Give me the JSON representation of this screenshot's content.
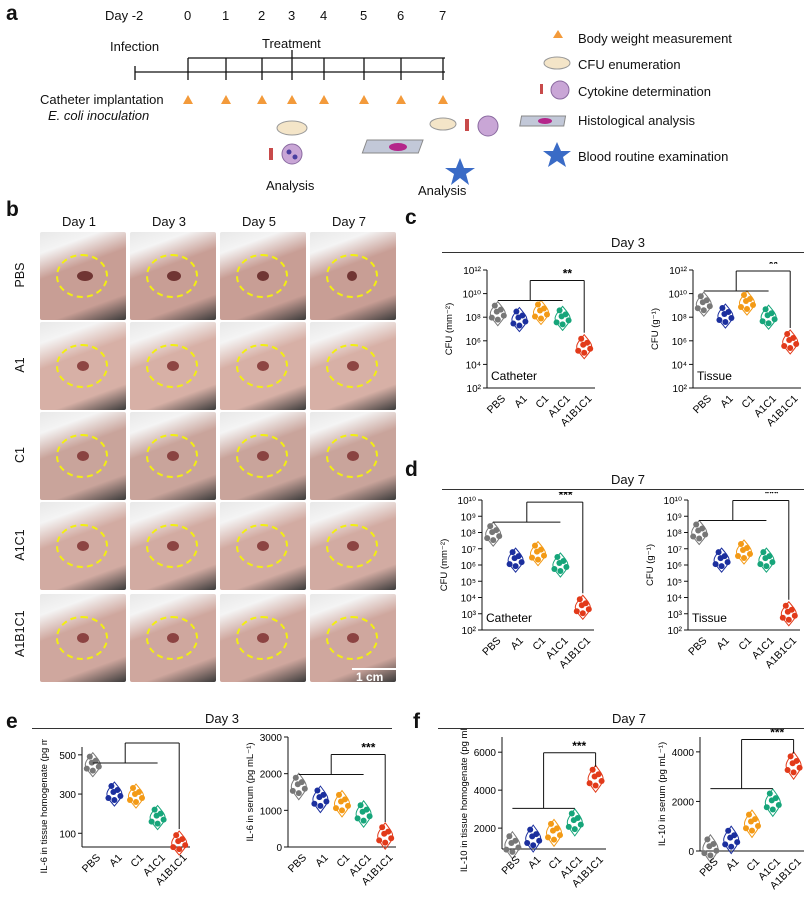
{
  "panel_a": {
    "label": "a",
    "day_prefix": "Day -2",
    "days": [
      "0",
      "1",
      "2",
      "3",
      "4",
      "5",
      "6",
      "7"
    ],
    "infection": "Infection",
    "treatment": "Treatment",
    "catheter": "Catheter implantation",
    "inoculation": "E. coli inoculation",
    "analysis": "Analysis",
    "legend": [
      "Body weight measurement",
      "CFU enumeration",
      "Cytokine determination",
      "Histological analysis",
      "Blood routine examination"
    ]
  },
  "panel_b": {
    "label": "b",
    "days": [
      "Day 1",
      "Day 3",
      "Day 5",
      "Day 7"
    ],
    "groups": [
      "PBS",
      "A1",
      "C1",
      "A1C1",
      "A1B1C1"
    ],
    "scale": "1 cm",
    "tones": [
      "#c89e95",
      "#d7b0a6",
      "#c9a49b",
      "#d2aba2",
      "#cfa79e"
    ]
  },
  "panel_c": {
    "label": "c",
    "title": "Day 3"
  },
  "panel_d": {
    "label": "d",
    "title": "Day 7"
  },
  "panel_e": {
    "label": "e",
    "title": "Day 3"
  },
  "panel_f": {
    "label": "f",
    "title": "Day 7"
  },
  "colors": {
    "PBS": "#777777",
    "A1": "#1b2f9e",
    "C1": "#f39a16",
    "A1C1": "#16a57a",
    "A1B1C1": "#e23a1a",
    "marker": "#f39a3a",
    "star": "#3a6bc6"
  },
  "chart_data": [
    {
      "id": "c1",
      "type": "scatter",
      "ylabel": "CFU (mm⁻²)",
      "inner_label": "Catheter",
      "log": true,
      "yticks": [
        "10²",
        "10⁴",
        "10⁶",
        "10⁸",
        "10¹⁰",
        "10¹²"
      ],
      "ylim": [
        2,
        12
      ],
      "categories": [
        "PBS",
        "A1",
        "C1",
        "A1C1",
        "A1B1C1"
      ],
      "values": [
        8.3,
        7.8,
        8.4,
        7.9,
        5.5
      ],
      "sig": "**"
    },
    {
      "id": "c2",
      "type": "scatter",
      "ylabel": "CFU (g⁻¹)",
      "inner_label": "Tissue",
      "log": true,
      "yticks": [
        "10²",
        "10⁴",
        "10⁶",
        "10⁸",
        "10¹⁰",
        "10¹²"
      ],
      "ylim": [
        2,
        12
      ],
      "categories": [
        "PBS",
        "A1",
        "C1",
        "A1C1",
        "A1B1C1"
      ],
      "values": [
        9.1,
        8.1,
        9.2,
        8.0,
        5.9
      ],
      "sig": "**"
    },
    {
      "id": "d1",
      "type": "scatter",
      "ylabel": "CFU (mm⁻²)",
      "inner_label": "Catheter",
      "log": true,
      "yticks": [
        "10²",
        "10³",
        "10⁴",
        "10⁵",
        "10⁶",
        "10⁷",
        "10⁸",
        "10⁹",
        "10¹⁰"
      ],
      "ylim": [
        2,
        10
      ],
      "categories": [
        "PBS",
        "A1",
        "C1",
        "A1C1",
        "A1B1C1"
      ],
      "values": [
        7.9,
        6.3,
        6.7,
        6.0,
        3.4
      ],
      "sig": "***"
    },
    {
      "id": "d2",
      "type": "scatter",
      "ylabel": "CFU (g⁻¹)",
      "inner_label": "Tissue",
      "log": true,
      "yticks": [
        "10²",
        "10³",
        "10⁴",
        "10⁵",
        "10⁶",
        "10⁷",
        "10⁸",
        "10⁹",
        "10¹⁰"
      ],
      "ylim": [
        2,
        10
      ],
      "categories": [
        "PBS",
        "A1",
        "C1",
        "A1C1",
        "A1B1C1"
      ],
      "values": [
        8.0,
        6.3,
        6.8,
        6.3,
        3.0
      ],
      "sig": "***"
    },
    {
      "id": "e1",
      "type": "scatter",
      "ylabel": "IL-6 in tissue homogenate (pg mL⁻¹)",
      "inner_label": "",
      "log": false,
      "yticks": [
        "100",
        "300",
        "500"
      ],
      "ytickvals": [
        100,
        300,
        500
      ],
      "ylim": [
        30,
        540
      ],
      "categories": [
        "PBS",
        "A1",
        "C1",
        "A1C1",
        "A1B1C1"
      ],
      "values": [
        450,
        300,
        290,
        180,
        50
      ],
      "sig": "***"
    },
    {
      "id": "e2",
      "type": "scatter",
      "ylabel": "IL-6 in serum (pg mL⁻¹)",
      "inner_label": "",
      "log": false,
      "yticks": [
        "0",
        "1000",
        "2000",
        "3000"
      ],
      "ytickvals": [
        0,
        1000,
        2000,
        3000
      ],
      "ylim": [
        0,
        3000
      ],
      "categories": [
        "PBS",
        "A1",
        "C1",
        "A1C1",
        "A1B1C1"
      ],
      "values": [
        1650,
        1300,
        1180,
        900,
        300
      ],
      "sig": "***"
    },
    {
      "id": "f1",
      "type": "scatter",
      "ylabel": "IL-10 in tissue homogenate (pg mL⁻¹)",
      "inner_label": "",
      "log": false,
      "yticks": [
        "2000",
        "4000",
        "6000"
      ],
      "ytickvals": [
        2000,
        4000,
        6000
      ],
      "ylim": [
        900,
        6800
      ],
      "categories": [
        "PBS",
        "A1",
        "C1",
        "A1C1",
        "A1B1C1"
      ],
      "values": [
        1100,
        1450,
        1750,
        2300,
        4600
      ],
      "sig": "***"
    },
    {
      "id": "f2",
      "type": "scatter",
      "ylabel": "IL-10 in serum (pg mL⁻¹)",
      "inner_label": "",
      "log": false,
      "yticks": [
        "0",
        "2000",
        "4000"
      ],
      "ytickvals": [
        0,
        2000,
        4000
      ],
      "ylim": [
        0,
        4600
      ],
      "categories": [
        "PBS",
        "A1",
        "C1",
        "A1C1",
        "A1B1C1"
      ],
      "values": [
        100,
        450,
        1100,
        1950,
        3450
      ],
      "sig": "***"
    }
  ]
}
